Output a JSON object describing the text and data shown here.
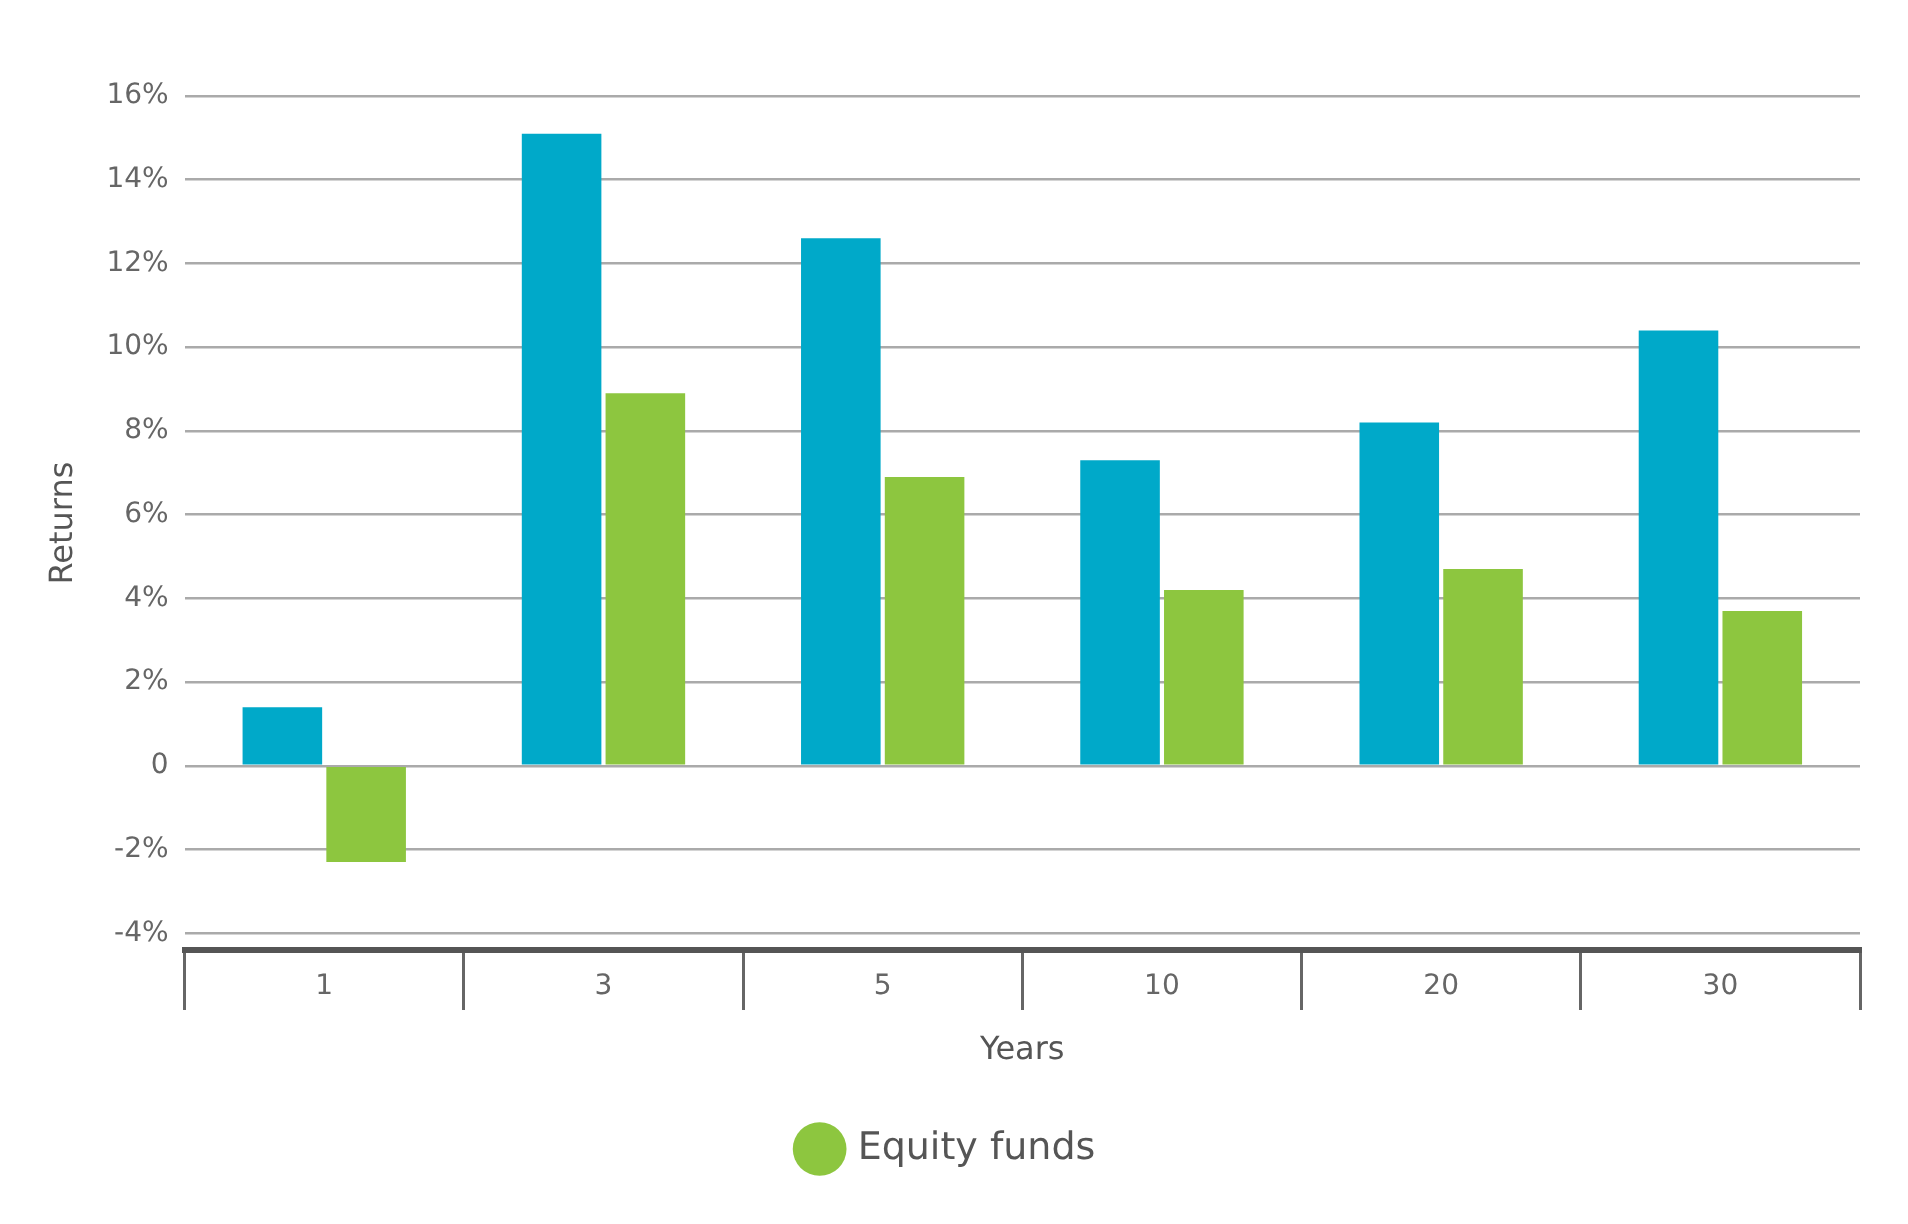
{
  "chart_data": {
    "type": "bar",
    "xlabel": "Years",
    "ylabel": "Returns",
    "categories": [
      "1",
      "3",
      "5",
      "10",
      "20",
      "30"
    ],
    "series": [
      {
        "color": "#00a9c9",
        "values": [
          1.4,
          15.1,
          12.6,
          7.3,
          8.2,
          10.4
        ]
      },
      {
        "name": "Equity funds",
        "color": "#8dc63f",
        "values": [
          -2.3,
          8.9,
          6.9,
          4.2,
          4.7,
          3.7
        ]
      }
    ],
    "ylim": [
      -4.4,
      16
    ],
    "yticks": [
      {
        "value": -4,
        "label": "-4%"
      },
      {
        "value": -2,
        "label": "-2%"
      },
      0,
      {
        "value": 2,
        "label": "2%"
      },
      {
        "value": 4,
        "label": "4%"
      },
      {
        "value": 6,
        "label": "6%"
      },
      {
        "value": 8,
        "label": "8%"
      },
      {
        "value": 10,
        "label": "10%"
      },
      {
        "value": 12,
        "label": "12%"
      },
      {
        "value": 14,
        "label": "14%"
      },
      {
        "value": 16,
        "label": "16%"
      }
    ],
    "grid": "y",
    "legend": "bottom"
  }
}
